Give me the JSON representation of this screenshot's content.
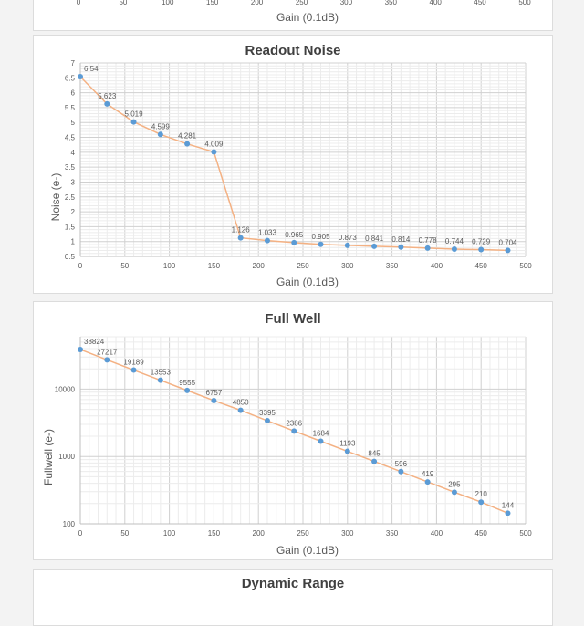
{
  "chart_data": [
    {
      "type": "line",
      "title": "",
      "xlabel": "Gain (0.1dB)",
      "ylabel": "",
      "xlim": [
        0,
        500
      ],
      "x_ticks": [
        "0",
        "50",
        "100",
        "150",
        "200",
        "250",
        "300",
        "350",
        "400",
        "450",
        "500"
      ],
      "partially_visible": true
    },
    {
      "type": "line",
      "title": "Readout Noise",
      "xlabel": "Gain (0.1dB)",
      "ylabel": "Noise (e-)",
      "xlim": [
        0,
        500
      ],
      "ylim": [
        0.5,
        7
      ],
      "y_scale": "linear",
      "x_ticks": [
        "0",
        "50",
        "100",
        "150",
        "200",
        "250",
        "300",
        "350",
        "400",
        "450",
        "500"
      ],
      "y_ticks": [
        "0.5",
        "1",
        "1.5",
        "2",
        "2.5",
        "3",
        "3.5",
        "4",
        "4.5",
        "5",
        "5.5",
        "6",
        "6.5",
        "7"
      ],
      "y_tick_values": [
        0.5,
        1,
        1.5,
        2,
        2.5,
        3,
        3.5,
        4,
        4.5,
        5,
        5.5,
        6,
        6.5,
        7
      ],
      "grid": true,
      "x": [
        0,
        30,
        60,
        90,
        120,
        150,
        180,
        210,
        240,
        270,
        300,
        330,
        360,
        390,
        420,
        450,
        480
      ],
      "values": [
        6.54,
        5.623,
        5.019,
        4.599,
        4.281,
        4.009,
        1.126,
        1.033,
        0.965,
        0.905,
        0.873,
        0.841,
        0.814,
        0.778,
        0.744,
        0.729,
        0.704
      ],
      "labels": [
        "6.54",
        "5.623",
        "5.019",
        "4.599",
        "4.281",
        "4.009",
        "1.126",
        "1.033",
        "0.965",
        "0.905",
        "0.873",
        "0.841",
        "0.814",
        "0.778",
        "0.744",
        "0.729",
        "0.704"
      ]
    },
    {
      "type": "line",
      "title": "Full Well",
      "xlabel": "Gain (0.1dB)",
      "ylabel": "Fullwell (e-)",
      "xlim": [
        0,
        500
      ],
      "ylim": [
        100,
        60000
      ],
      "y_scale": "log",
      "x_ticks": [
        "0",
        "50",
        "100",
        "150",
        "200",
        "250",
        "300",
        "350",
        "400",
        "450",
        "500"
      ],
      "y_ticks": [
        "100",
        "1000",
        "10000"
      ],
      "y_tick_values": [
        100,
        1000,
        10000
      ],
      "grid": true,
      "x": [
        0,
        30,
        60,
        90,
        120,
        150,
        180,
        210,
        240,
        270,
        300,
        330,
        360,
        390,
        420,
        450,
        480
      ],
      "values": [
        38824,
        27217,
        19189,
        13553,
        9555,
        6757,
        4850,
        3395,
        2386,
        1684,
        1193,
        845,
        596,
        419,
        295,
        210,
        144
      ],
      "labels": [
        "38824",
        "27217",
        "19189",
        "13553",
        "9555",
        "6757",
        "4850",
        "3395",
        "2386",
        "1684",
        "1193",
        "845",
        "596",
        "419",
        "295",
        "210",
        "144"
      ]
    },
    {
      "type": "line",
      "title": "Dynamic Range",
      "partially_visible": true
    }
  ],
  "colors": {
    "line": "#f4b183",
    "marker": "#5b9bd5",
    "grid": "#d9d9d9",
    "text": "#595959",
    "title": "#404040"
  }
}
